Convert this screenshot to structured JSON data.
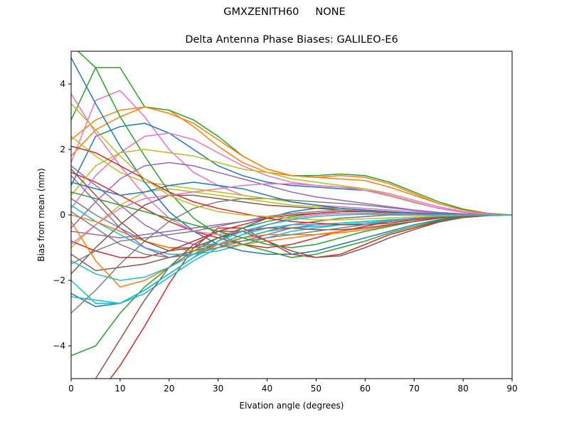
{
  "figure": {
    "suptitle": "GMXZENITH60     NONE"
  },
  "chart_data": {
    "type": "line",
    "title": "Delta Antenna Phase Biases: GALILEO-E6",
    "xlabel": "Elvation angle (degrees)",
    "ylabel": "Bias from mean (mm)",
    "xlim": [
      0,
      90
    ],
    "ylim": [
      -5,
      5
    ],
    "xticks": [
      0,
      10,
      20,
      30,
      40,
      50,
      60,
      70,
      80,
      90
    ],
    "yticks": [
      -4,
      -2,
      0,
      2,
      4
    ],
    "xtick_labels": [
      "0",
      "10",
      "20",
      "30",
      "40",
      "50",
      "60",
      "70",
      "80",
      "90"
    ],
    "ytick_labels": [
      "−4",
      "−2",
      "0",
      "2",
      "4"
    ],
    "grid": false,
    "legend": "none",
    "colors": [
      "#1f77b4",
      "#ff7f0e",
      "#2ca02c",
      "#d62728",
      "#9467bd",
      "#8c564b",
      "#e377c2",
      "#7f7f7f",
      "#bcbd22",
      "#17becf"
    ],
    "x": [
      0,
      5,
      10,
      15,
      20,
      25,
      30,
      35,
      40,
      45,
      50,
      55,
      60,
      65,
      70,
      75,
      80,
      85,
      90
    ],
    "series": [
      {
        "values": [
          -2.4,
          -2.8,
          -2.7,
          -2.3,
          -1.8,
          -1.3,
          -0.8,
          -0.4,
          -0.1,
          0.1,
          0.2,
          0.2,
          0.15,
          0.1,
          0.05,
          0.03,
          0.01,
          0.0,
          0.0
        ]
      },
      {
        "values": [
          2.3,
          2.9,
          3.2,
          3.3,
          3.2,
          2.7,
          2.1,
          1.6,
          1.3,
          1.2,
          1.15,
          1.1,
          1.05,
          0.85,
          0.6,
          0.35,
          0.15,
          0.05,
          0.0
        ]
      },
      {
        "values": [
          2.9,
          4.5,
          4.5,
          3.3,
          3.2,
          2.9,
          2.4,
          1.8,
          1.4,
          1.2,
          1.2,
          1.25,
          1.2,
          1.0,
          0.7,
          0.4,
          0.18,
          0.05,
          0.0
        ]
      },
      {
        "values": [
          -6.2,
          -5.6,
          -4.6,
          -3.4,
          -2.1,
          -1.0,
          -0.4,
          -0.4,
          -0.8,
          -1.2,
          -1.3,
          -1.2,
          -0.9,
          -0.6,
          -0.4,
          -0.2,
          -0.08,
          -0.02,
          0.0
        ]
      },
      {
        "values": [
          1.5,
          0.9,
          0.3,
          -0.3,
          -0.7,
          -0.9,
          -0.9,
          -0.8,
          -0.6,
          -0.4,
          -0.3,
          -0.25,
          -0.2,
          -0.15,
          -0.1,
          -0.05,
          -0.02,
          0.0,
          0.0
        ]
      },
      {
        "values": [
          -1.2,
          -1.7,
          -1.6,
          -1.5,
          -1.3,
          -1.1,
          -0.9,
          -0.7,
          -0.5,
          -0.3,
          -0.2,
          -0.1,
          -0.05,
          0.0,
          0.0,
          0.0,
          0.0,
          0.0,
          0.0
        ]
      },
      {
        "values": [
          1.6,
          3.5,
          3.8,
          3.0,
          2.0,
          1.3,
          0.9,
          0.6,
          0.5,
          0.4,
          0.3,
          0.25,
          0.2,
          0.15,
          0.1,
          0.05,
          0.02,
          0.0,
          0.0
        ]
      },
      {
        "values": [
          0.5,
          0.0,
          -0.4,
          -0.8,
          -1.0,
          -1.0,
          -0.9,
          -0.7,
          -0.5,
          -0.3,
          -0.2,
          -0.1,
          -0.05,
          0.0,
          0.0,
          0.0,
          0.0,
          0.0,
          0.0
        ]
      },
      {
        "values": [
          -1.0,
          -0.3,
          0.3,
          0.7,
          0.8,
          0.7,
          0.6,
          0.5,
          0.4,
          0.3,
          0.25,
          0.2,
          0.15,
          0.1,
          0.05,
          0.03,
          0.01,
          0.0,
          0.0
        ]
      },
      {
        "values": [
          -2.5,
          -2.6,
          -2.7,
          -2.4,
          -1.9,
          -1.4,
          -1.0,
          -0.7,
          -0.5,
          -0.4,
          -0.35,
          -0.3,
          -0.25,
          -0.2,
          -0.12,
          -0.06,
          -0.02,
          0.0,
          0.0
        ]
      },
      {
        "values": [
          0.9,
          2.4,
          2.7,
          2.8,
          2.5,
          2.0,
          1.5,
          1.2,
          1.0,
          0.9,
          0.85,
          0.8,
          0.75,
          0.6,
          0.4,
          0.2,
          0.08,
          0.02,
          0.0
        ]
      },
      {
        "values": [
          1.8,
          2.6,
          3.0,
          3.3,
          3.1,
          2.8,
          2.3,
          1.8,
          1.4,
          1.2,
          1.15,
          1.2,
          1.15,
          0.95,
          0.65,
          0.35,
          0.15,
          0.04,
          0.0
        ]
      },
      {
        "values": [
          -4.3,
          -4.0,
          -3.0,
          -2.2,
          -1.6,
          -1.1,
          -0.7,
          -0.4,
          -0.2,
          -0.05,
          0.05,
          0.1,
          0.1,
          0.07,
          0.04,
          0.02,
          0.01,
          0.0,
          0.0
        ]
      },
      {
        "values": [
          1.3,
          1.0,
          0.6,
          0.2,
          -0.2,
          -0.5,
          -0.7,
          -0.9,
          -1.0,
          -0.9,
          -0.7,
          -0.5,
          -0.35,
          -0.2,
          -0.1,
          -0.05,
          -0.02,
          0.0,
          0.0
        ]
      },
      {
        "values": [
          -0.5,
          -0.6,
          -0.7,
          -0.6,
          -0.5,
          -0.4,
          -0.3,
          -0.2,
          -0.1,
          0.0,
          0.05,
          0.1,
          0.1,
          0.08,
          0.05,
          0.03,
          0.01,
          0.0,
          0.0
        ]
      },
      {
        "values": [
          -1.8,
          -1.0,
          -0.3,
          0.3,
          0.6,
          0.6,
          0.5,
          0.4,
          0.3,
          0.25,
          0.2,
          0.15,
          0.1,
          0.08,
          0.05,
          0.03,
          0.01,
          0.0,
          0.0
        ]
      },
      {
        "values": [
          0.2,
          1.2,
          1.9,
          2.4,
          2.5,
          2.3,
          1.9,
          1.5,
          1.2,
          1.0,
          0.9,
          0.85,
          0.8,
          0.65,
          0.45,
          0.25,
          0.1,
          0.03,
          0.0
        ]
      },
      {
        "values": [
          -3.0,
          -2.3,
          -1.5,
          -0.8,
          -0.2,
          0.2,
          0.4,
          0.5,
          0.5,
          0.45,
          0.4,
          0.35,
          0.3,
          0.22,
          0.14,
          0.07,
          0.03,
          0.01,
          0.0
        ]
      },
      {
        "values": [
          2.4,
          1.8,
          1.3,
          1.0,
          0.9,
          0.8,
          0.7,
          0.6,
          0.5,
          0.4,
          0.3,
          0.2,
          0.15,
          0.1,
          0.05,
          0.02,
          0.01,
          0.0,
          0.0
        ]
      },
      {
        "values": [
          0.3,
          -0.2,
          -0.6,
          -1.0,
          -1.2,
          -1.2,
          -1.1,
          -0.9,
          -0.7,
          -0.5,
          -0.4,
          -0.3,
          -0.25,
          -0.18,
          -0.1,
          -0.05,
          -0.02,
          0.0,
          0.0
        ]
      },
      {
        "values": [
          4.8,
          3.4,
          2.1,
          1.0,
          0.1,
          -0.5,
          -0.9,
          -1.1,
          -1.2,
          -1.2,
          -1.1,
          -0.9,
          -0.7,
          -0.5,
          -0.3,
          -0.15,
          -0.05,
          -0.01,
          0.0
        ]
      },
      {
        "values": [
          0.0,
          -0.2,
          -0.5,
          -0.8,
          -1.0,
          -1.1,
          -1.0,
          -0.9,
          -0.8,
          -0.7,
          -0.6,
          -0.5,
          -0.4,
          -0.3,
          -0.2,
          -0.1,
          -0.04,
          -0.01,
          0.0
        ]
      },
      {
        "values": [
          5.2,
          4.5,
          3.0,
          1.8,
          0.7,
          -0.1,
          -0.6,
          -0.9,
          -1.1,
          -1.3,
          -1.2,
          -1.0,
          -0.8,
          -0.55,
          -0.35,
          -0.18,
          -0.07,
          -0.02,
          0.0
        ]
      },
      {
        "values": [
          -0.8,
          -1.1,
          -1.3,
          -1.3,
          -1.1,
          -0.8,
          -0.5,
          -0.3,
          -0.1,
          0.0,
          0.05,
          0.1,
          0.1,
          0.08,
          0.05,
          0.03,
          0.01,
          0.0,
          0.0
        ]
      },
      {
        "values": [
          1.2,
          0.4,
          -0.4,
          -1.0,
          -1.3,
          -1.2,
          -0.9,
          -0.6,
          -0.3,
          -0.1,
          0.0,
          0.05,
          0.05,
          0.04,
          0.03,
          0.02,
          0.01,
          0.0,
          0.0
        ]
      },
      {
        "values": [
          -5.5,
          -5.0,
          -3.8,
          -2.6,
          -1.6,
          -0.9,
          -0.5,
          -0.5,
          -0.8,
          -1.1,
          -1.3,
          -1.25,
          -1.0,
          -0.7,
          -0.45,
          -0.22,
          -0.08,
          -0.02,
          0.0
        ]
      },
      {
        "values": [
          3.7,
          2.5,
          1.5,
          0.6,
          -0.1,
          -0.5,
          -0.6,
          -0.5,
          -0.3,
          -0.1,
          0.0,
          0.05,
          0.05,
          0.04,
          0.03,
          0.02,
          0.01,
          0.0,
          0.0
        ]
      },
      {
        "values": [
          -1.5,
          -1.1,
          -0.8,
          -0.7,
          -0.6,
          -0.5,
          -0.35,
          -0.2,
          -0.05,
          0.05,
          0.1,
          0.15,
          0.12,
          0.09,
          0.06,
          0.03,
          0.01,
          0.0,
          0.0
        ]
      },
      {
        "values": [
          0.6,
          1.5,
          1.9,
          2.0,
          1.9,
          1.8,
          1.6,
          1.4,
          1.3,
          1.1,
          1.0,
          0.9,
          0.8,
          0.6,
          0.4,
          0.2,
          0.08,
          0.02,
          0.0
        ]
      },
      {
        "values": [
          -2.0,
          -2.7,
          -2.7,
          -2.3,
          -1.8,
          -1.3,
          -0.9,
          -0.6,
          -0.4,
          -0.3,
          -0.3,
          -0.25,
          -0.2,
          -0.15,
          -0.1,
          -0.05,
          -0.02,
          0.0,
          0.0
        ]
      },
      {
        "values": [
          1.0,
          0.8,
          0.6,
          0.7,
          0.9,
          1.0,
          0.9,
          0.8,
          0.6,
          0.4,
          0.3,
          0.2,
          0.15,
          0.1,
          0.06,
          0.03,
          0.01,
          0.0,
          0.0
        ]
      },
      {
        "values": [
          -0.2,
          -1.4,
          -2.2,
          -2.0,
          -1.6,
          -1.2,
          -0.9,
          -0.7,
          -0.6,
          -0.6,
          -0.6,
          -0.55,
          -0.45,
          -0.32,
          -0.2,
          -0.1,
          -0.04,
          -0.01,
          0.0
        ]
      },
      {
        "values": [
          0.7,
          0.5,
          0.3,
          0.1,
          -0.1,
          -0.3,
          -0.5,
          -0.7,
          -0.9,
          -1.0,
          -0.9,
          -0.7,
          -0.5,
          -0.35,
          -0.2,
          -0.1,
          -0.04,
          -0.01,
          0.0
        ]
      },
      {
        "values": [
          2.1,
          1.9,
          1.5,
          1.1,
          0.7,
          0.4,
          0.2,
          0.05,
          -0.1,
          -0.2,
          -0.25,
          -0.3,
          -0.3,
          -0.25,
          -0.15,
          -0.08,
          -0.03,
          -0.01,
          0.0
        ]
      },
      {
        "values": [
          -0.4,
          0.4,
          1.1,
          1.5,
          1.6,
          1.5,
          1.3,
          1.1,
          0.9,
          0.7,
          0.55,
          0.45,
          0.35,
          0.25,
          0.15,
          0.08,
          0.03,
          0.01,
          0.0
        ]
      },
      {
        "values": [
          1.4,
          0.6,
          -0.2,
          -0.8,
          -1.1,
          -1.0,
          -0.7,
          -0.5,
          -0.4,
          -0.4,
          -0.45,
          -0.45,
          -0.4,
          -0.3,
          -0.2,
          -0.1,
          -0.04,
          -0.01,
          0.0
        ]
      },
      {
        "values": [
          -0.9,
          -0.3,
          0.2,
          0.5,
          0.6,
          0.7,
          0.8,
          0.9,
          0.95,
          0.95,
          0.9,
          0.85,
          0.75,
          0.58,
          0.38,
          0.2,
          0.08,
          0.02,
          0.0
        ]
      },
      {
        "values": [
          0.1,
          -0.4,
          -0.9,
          -1.2,
          -1.3,
          -1.2,
          -1.0,
          -0.8,
          -0.7,
          -0.6,
          -0.5,
          -0.4,
          -0.3,
          -0.2,
          -0.12,
          -0.06,
          -0.02,
          0.0,
          0.0
        ]
      },
      {
        "values": [
          3.4,
          2.6,
          1.8,
          1.1,
          0.6,
          0.3,
          0.1,
          0.0,
          -0.05,
          -0.1,
          -0.15,
          -0.15,
          -0.12,
          -0.09,
          -0.06,
          -0.03,
          -0.01,
          0.0,
          0.0
        ]
      },
      {
        "values": [
          -1.4,
          -1.8,
          -2.0,
          -1.9,
          -1.6,
          -1.2,
          -0.8,
          -0.5,
          -0.3,
          -0.15,
          -0.05,
          0.0,
          0.02,
          0.02,
          0.01,
          0.01,
          0.0,
          0.0,
          0.0
        ]
      }
    ]
  }
}
